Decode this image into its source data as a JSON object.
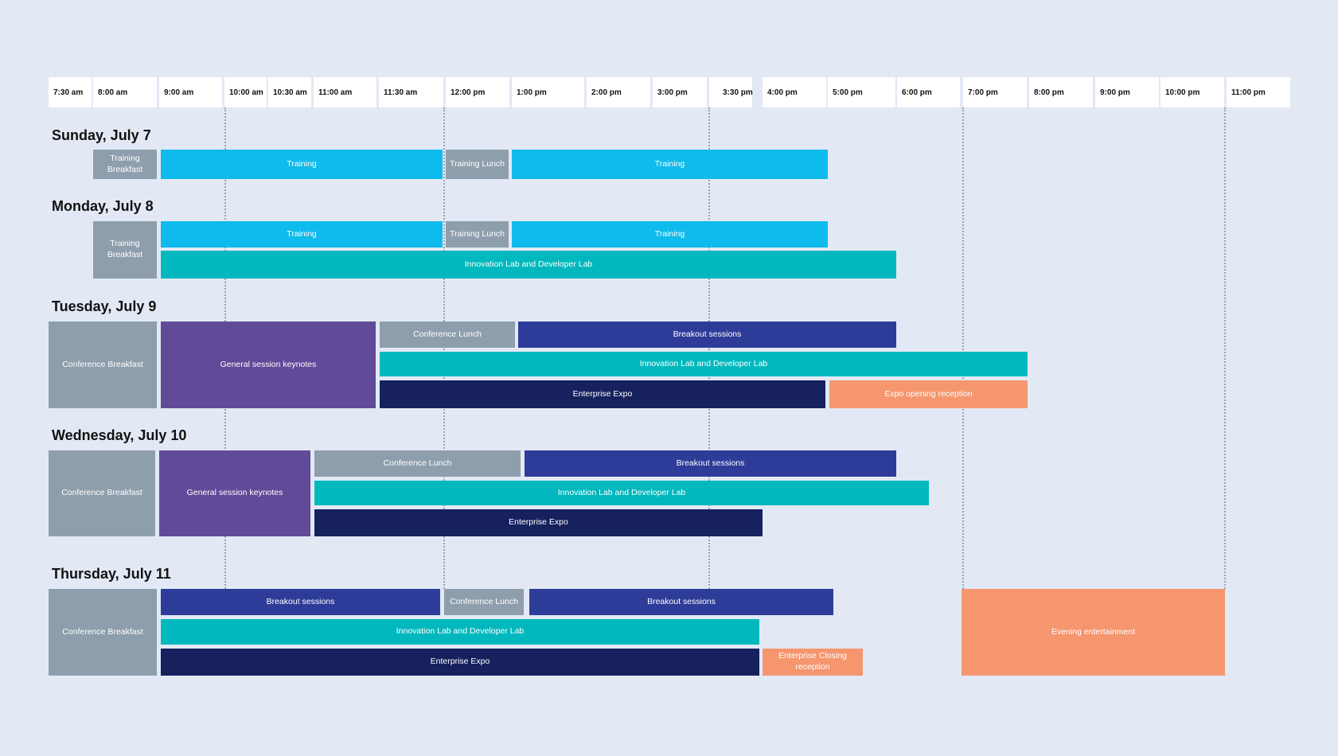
{
  "colors": {
    "background": "#e2e9f5",
    "gray": "#8e9eac",
    "training": "#0ebbec",
    "teal": "#00b8bd",
    "purple": "#614a98",
    "blue": "#2e3c99",
    "navy": "#16215e",
    "salmon": "#f5966f"
  },
  "times": [
    "7:30 am",
    "8:00 am",
    "9:00 am",
    "10:00 am",
    "10:30 am",
    "11:00 am",
    "11:30 am",
    "12:00 pm",
    "1:00 pm",
    "2:00 pm",
    "3:00 pm",
    "3:30 pm",
    "4:00 pm",
    "5:00 pm",
    "6:00 pm",
    "7:00 pm",
    "8:00 pm",
    "9:00 pm",
    "10:00 pm",
    "11:00 pm"
  ],
  "days": {
    "sun": {
      "label": "Sunday, July 7",
      "training_breakfast": "Training Breakfast",
      "training_am": "Training",
      "training_lunch": "Training Lunch",
      "training_pm": "Training"
    },
    "mon": {
      "label": "Monday, July 8",
      "training_breakfast": "Training Breakfast",
      "training_am": "Training",
      "training_lunch": "Training Lunch",
      "training_pm": "Training",
      "innovation_lab": "Innovation Lab and Developer Lab"
    },
    "tue": {
      "label": "Tuesday, July 9",
      "breakfast": "Conference Breakfast",
      "keynotes": "General session keynotes",
      "lunch": "Conference Lunch",
      "breakouts": "Breakout sessions",
      "innovation_lab": "Innovation Lab and Developer Lab",
      "expo": "Enterprise Expo",
      "reception": "Expo opening reception"
    },
    "wed": {
      "label": "Wednesday, July 10",
      "breakfast": "Conference Breakfast",
      "keynotes": "General session keynotes",
      "lunch": "Conference Lunch",
      "breakouts": "Breakout sessions",
      "innovation_lab": "Innovation Lab and Developer Lab",
      "expo": "Enterprise Expo"
    },
    "thu": {
      "label": "Thursday, July 11",
      "breakfast": "Conference Breakfast",
      "breakouts_am": "Breakout sessions",
      "lunch": "Conference Lunch",
      "breakouts_pm": "Breakout sessions",
      "innovation_lab": "Innovation Lab and Developer Lab",
      "expo": "Enterprise Expo",
      "closing_reception": "Enterprise Closing reception",
      "evening": "Evening entertainment"
    }
  }
}
